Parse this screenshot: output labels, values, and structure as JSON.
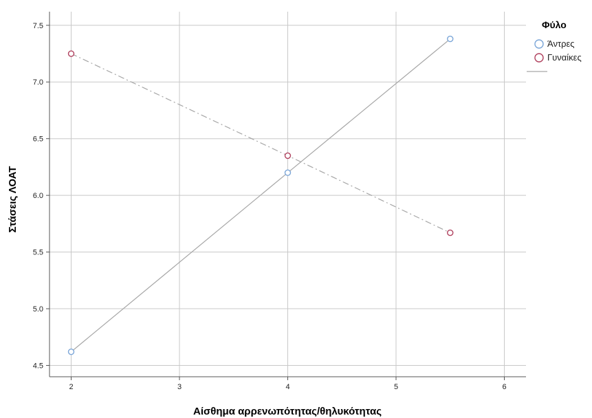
{
  "chart_data": {
    "type": "line",
    "title": "",
    "xlabel": "Αίσθημα αρρενωπότητας/θηλυκότητας",
    "ylabel": "Στάσεις ΛΟΑΤ",
    "xlim": [
      1.8,
      6.2
    ],
    "ylim": [
      4.4,
      7.62
    ],
    "xticks": [
      2,
      3,
      4,
      5,
      6
    ],
    "yticks": [
      4.5,
      5.0,
      5.5,
      6.0,
      6.5,
      7.0,
      7.5
    ],
    "xtick_labels": [
      "2",
      "3",
      "4",
      "5",
      "6"
    ],
    "ytick_labels": [
      "4.5",
      "5.0",
      "5.5",
      "6.0",
      "6.5",
      "7.0",
      "7.5"
    ],
    "grid": true,
    "legend_title": "Φύλο",
    "legend_position": "right",
    "series": [
      {
        "name": "Άντρες",
        "color": "#7ba6d8",
        "line_style": "solid",
        "points": [
          {
            "x": 2,
            "y": 4.62
          },
          {
            "x": 4,
            "y": 6.2
          },
          {
            "x": 5.5,
            "y": 7.38
          }
        ]
      },
      {
        "name": "Γυναίκες",
        "color": "#b0415e",
        "line_style": "dash-dot",
        "points": [
          {
            "x": 2,
            "y": 7.25
          },
          {
            "x": 4,
            "y": 6.35
          },
          {
            "x": 5.5,
            "y": 5.67
          }
        ]
      }
    ],
    "fit_line_color": "#a6a6a6"
  }
}
